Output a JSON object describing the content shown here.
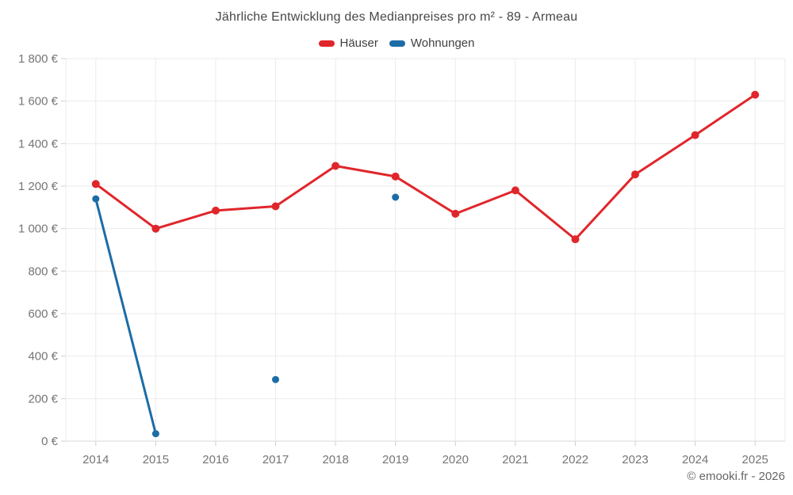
{
  "page": {
    "background": "#ffffff"
  },
  "chart_data": {
    "type": "line",
    "title": "Jährliche Entwicklung des Medianpreises pro m² - 89 - Armeau",
    "footer": "© emooki.fr - 2026",
    "categories": [
      "2014",
      "2015",
      "2016",
      "2017",
      "2018",
      "2019",
      "2020",
      "2021",
      "2022",
      "2023",
      "2024",
      "2025"
    ],
    "series": [
      {
        "name": "Häuser",
        "color": "#e0262b",
        "point_radius": 5,
        "values": [
          1210,
          1000,
          1085,
          1105,
          1295,
          1245,
          1070,
          1180,
          950,
          1255,
          1440,
          1630
        ]
      },
      {
        "name": "Wohnungen",
        "color": "#1c6ca6",
        "point_radius": 4.5,
        "values": [
          1140,
          35,
          null,
          290,
          null,
          1148,
          null,
          null,
          null,
          null,
          null,
          null
        ]
      }
    ],
    "ylim": [
      0,
      1800
    ],
    "y_tick_step": 200,
    "y_tick_labels": [
      "0 €",
      "200 €",
      "400 €",
      "600 €",
      "800 €",
      "1 000 €",
      "1 200 €",
      "1 400 €",
      "1 600 €",
      "1 800 €"
    ],
    "grid": true,
    "legend_position": "top",
    "style": {
      "grid_color": "#ebebeb",
      "axis_line_color": "#d7d7d7",
      "tick_color": "#cfcfcf",
      "axis_label_color": "#757575",
      "title_color": "#474747"
    }
  }
}
